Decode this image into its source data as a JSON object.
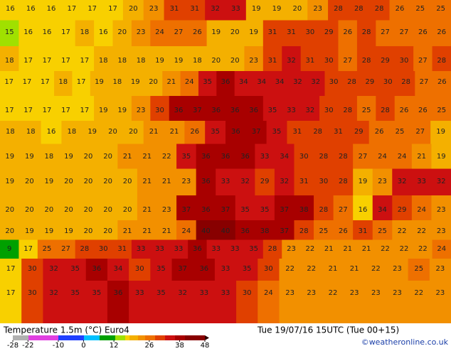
{
  "map": {
    "rows": [
      [
        16,
        16,
        16,
        17,
        17,
        17,
        20,
        23,
        31,
        31,
        32,
        33,
        19,
        19,
        20,
        23,
        28,
        28,
        28,
        26,
        25,
        25
      ],
      [
        15,
        16,
        16,
        17,
        18,
        16,
        20,
        23,
        24,
        27,
        26,
        19,
        20,
        19,
        31,
        31,
        30,
        29,
        26,
        28,
        27,
        27,
        26,
        26
      ],
      [
        18,
        17,
        17,
        17,
        17,
        18,
        18,
        18,
        19,
        19,
        18,
        20,
        20,
        23,
        31,
        32,
        31,
        30,
        27,
        28,
        29,
        30,
        27,
        28
      ],
      [
        17,
        17,
        17,
        18,
        17,
        19,
        18,
        19,
        20,
        21,
        24,
        35,
        36,
        34,
        34,
        34,
        32,
        32,
        30,
        28,
        29,
        30,
        28,
        27,
        26
      ],
      [
        17,
        17,
        17,
        17,
        17,
        19,
        19,
        23,
        30,
        36,
        37,
        36,
        36,
        36,
        35,
        33,
        32,
        30,
        28,
        25,
        28,
        26,
        26,
        25
      ],
      [
        18,
        18,
        16,
        18,
        19,
        20,
        20,
        21,
        21,
        26,
        35,
        36,
        37,
        35,
        31,
        28,
        31,
        29,
        26,
        25,
        27,
        19
      ],
      [
        19,
        19,
        18,
        19,
        20,
        20,
        21,
        21,
        22,
        35,
        36,
        36,
        36,
        33,
        34,
        30,
        28,
        28,
        27,
        24,
        24,
        21,
        19
      ],
      [
        19,
        20,
        19,
        20,
        20,
        20,
        20,
        21,
        21,
        23,
        36,
        33,
        32,
        29,
        32,
        31,
        30,
        28,
        19,
        23,
        32,
        33,
        32
      ],
      [
        20,
        20,
        20,
        20,
        20,
        20,
        20,
        21,
        23,
        37,
        36,
        37,
        35,
        35,
        37,
        38,
        28,
        27,
        16,
        34,
        29,
        24,
        23
      ],
      [
        20,
        19,
        19,
        19,
        20,
        20,
        21,
        21,
        21,
        24,
        40,
        40,
        36,
        38,
        37,
        28,
        25,
        26,
        31,
        25,
        22,
        22,
        23
      ],
      [
        9,
        17,
        25,
        27,
        28,
        30,
        31,
        33,
        33,
        33,
        36,
        33,
        33,
        35,
        28,
        23,
        22,
        21,
        21,
        21,
        22,
        22,
        22,
        24
      ],
      [
        17,
        30,
        32,
        35,
        36,
        34,
        30,
        35,
        37,
        36,
        33,
        35,
        30,
        22,
        22,
        21,
        21,
        22,
        23,
        25,
        23
      ],
      [
        17,
        30,
        32,
        35,
        35,
        36,
        33,
        35,
        32,
        33,
        33,
        30,
        24,
        23,
        23,
        22,
        23,
        23,
        23,
        22,
        23
      ]
    ]
  },
  "footer": {
    "title": "Temperature 1.5m (°C) Euro4",
    "valid": "Tue 19/07/16 15UTC (Tue 00+15)",
    "credit": "©weatheronline.co.uk",
    "colorbar": {
      "range": [
        -28,
        48
      ],
      "ticks": [
        -28,
        -22,
        -10,
        0,
        12,
        26,
        38,
        48
      ]
    }
  }
}
